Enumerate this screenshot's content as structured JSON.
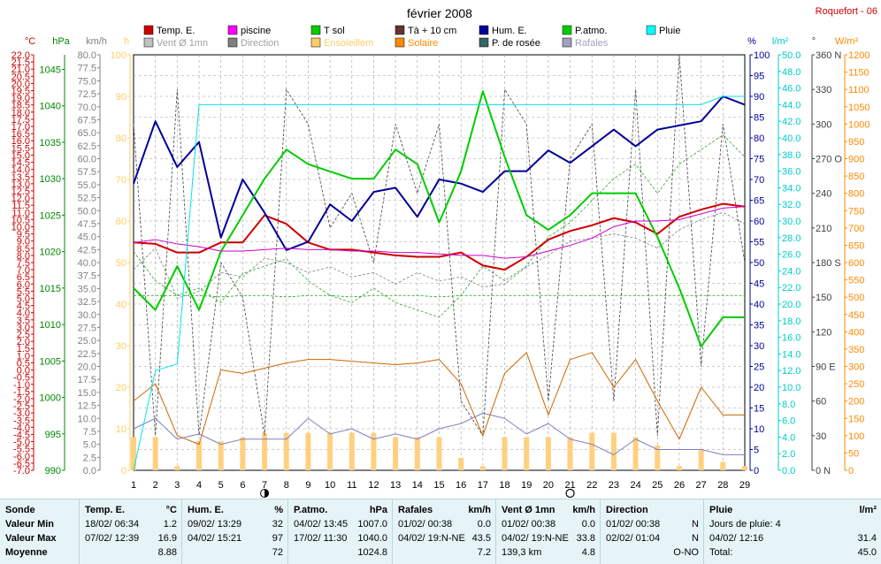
{
  "chart_data": {
    "type": "line",
    "title": "février 2008",
    "location": "Roquefort - 06",
    "x": [
      1,
      2,
      3,
      4,
      5,
      6,
      7,
      8,
      9,
      10,
      11,
      12,
      13,
      14,
      15,
      16,
      17,
      18,
      19,
      20,
      21,
      22,
      23,
      24,
      25,
      26,
      27,
      28,
      29
    ],
    "moon_phases": [
      {
        "day": 7,
        "phase": "last-quarter"
      },
      {
        "day": 21,
        "phase": "full"
      }
    ],
    "legend": [
      {
        "label": "Temp. E.",
        "color": "#cc0000"
      },
      {
        "label": "piscine",
        "color": "#ff00ff"
      },
      {
        "label": "T sol",
        "color": "#00cc00"
      },
      {
        "label": "Tà + 10 cm",
        "color": "#663333"
      },
      {
        "label": "Hum. E.",
        "color": "#000099"
      },
      {
        "label": "P.atmo.",
        "color": "#00cc00"
      },
      {
        "label": "Pluie",
        "color": "#00ffff"
      },
      {
        "label": "Vent Ø 1mn",
        "color": "#c0c0c0"
      },
      {
        "label": "Direction",
        "color": "#808080"
      },
      {
        "label": "Ensoleillem",
        "color": "#ffcc66"
      },
      {
        "label": "Solaire",
        "color": "#ff8800"
      },
      {
        "label": "P. de rosée",
        "color": "#336666"
      },
      {
        "label": "Rafales",
        "color": "#a0a0c0"
      }
    ],
    "axes": [
      {
        "unit": "°C",
        "color": "#cc0000",
        "min": -7,
        "max": 22,
        "step": 0.5,
        "label_step": 1,
        "decimals": 1
      },
      {
        "unit": "hPa",
        "color": "#008800",
        "min": 990,
        "max": 1047,
        "step": 5,
        "label_step": 5,
        "decimals": 0
      },
      {
        "unit": "km/h",
        "color": "#808080",
        "min": 0,
        "max": 80,
        "step": 2.5,
        "label_step": 2.5,
        "decimals": 1
      },
      {
        "unit": "h",
        "color": "#ffcc66",
        "min": 0,
        "max": 100,
        "step": 10,
        "label_step": 10,
        "decimals": 0
      },
      {
        "unit": "%",
        "color": "#000099",
        "min": 0,
        "max": 100,
        "step": 5,
        "label_step": 5,
        "decimals": 0
      },
      {
        "unit": "l/m²",
        "color": "#00cccc",
        "min": 0,
        "max": 50,
        "step": 2,
        "label_step": 2,
        "decimals": 1
      },
      {
        "unit": "°",
        "color": "#404040",
        "min": 0,
        "max": 360,
        "step": 30,
        "label_step": 30,
        "decimals": 0,
        "tick_names": {
          "90": "90 E",
          "180": "180 S",
          "270": "270 O",
          "360": "360 N",
          "0": "0 N"
        }
      },
      {
        "unit": "W/m²",
        "color": "#ff8800",
        "min": 0,
        "max": 1200,
        "step": 50,
        "label_step": 50,
        "decimals": 0
      }
    ],
    "series": [
      {
        "name": "Temp. E.",
        "axis": 0,
        "color": "#cc0000",
        "width": 2,
        "values": [
          8.9,
          8.8,
          8.2,
          8.2,
          8.9,
          8.9,
          10.8,
          10.2,
          8.9,
          8.4,
          8.4,
          8.2,
          8.0,
          7.9,
          7.9,
          8.2,
          7.3,
          7.0,
          7.9,
          9.1,
          9.7,
          10.1,
          10.6,
          10.3,
          9.5,
          10.7,
          11.2,
          11.6,
          11.4
        ]
      },
      {
        "name": "Hum. E.",
        "axis": 4,
        "color": "#000099",
        "width": 2,
        "values": [
          69,
          84,
          73,
          79,
          56,
          70,
          62,
          53,
          55,
          64,
          60,
          67,
          68,
          61,
          70,
          69,
          67,
          72,
          72,
          77,
          74,
          78,
          82,
          78,
          82,
          83,
          84,
          90,
          88
        ]
      },
      {
        "name": "P.atmo.",
        "axis": 1,
        "color": "#00cc00",
        "width": 2,
        "values": [
          1015,
          1012,
          1018,
          1012,
          1020,
          1025,
          1030,
          1034,
          1032,
          1031,
          1030,
          1030,
          1034,
          1032,
          1024,
          1031,
          1042,
          1033,
          1025,
          1023,
          1025,
          1028,
          1028,
          1028,
          1022,
          1015,
          1007,
          1011,
          1011
        ]
      },
      {
        "name": "piscine",
        "axis": 0,
        "color": "#cc00cc",
        "width": 1,
        "values": [
          8.9,
          9.1,
          8.8,
          8.6,
          8.3,
          8.3,
          8.4,
          8.5,
          8.4,
          8.4,
          8.3,
          8.3,
          8.2,
          8.2,
          8.1,
          8.0,
          8.0,
          7.8,
          7.9,
          8.3,
          8.7,
          9.2,
          10.0,
          10.4,
          10.4,
          10.5,
          10.9,
          11.3,
          11.4
        ]
      },
      {
        "name": "Rafales",
        "axis": 2,
        "color": "#8080c0",
        "width": 1,
        "values": [
          8,
          10,
          6,
          7,
          5,
          6,
          6,
          6,
          10,
          7,
          8,
          6,
          7,
          6,
          8,
          9,
          11,
          10,
          7,
          9,
          6,
          5,
          3,
          6,
          4,
          4,
          4,
          3,
          3
        ]
      },
      {
        "name": "Solaire",
        "axis": 7,
        "color": "#cc6600",
        "width": 1,
        "values": [
          200,
          250,
          100,
          75,
          290,
          280,
          295,
          310,
          320,
          320,
          315,
          310,
          305,
          310,
          320,
          250,
          100,
          280,
          340,
          160,
          320,
          340,
          240,
          320,
          200,
          90,
          240,
          160,
          160
        ]
      },
      {
        "name": "Pluie",
        "axis": 5,
        "color": "#00e5e5",
        "width": 1,
        "values": [
          0,
          12,
          12.8,
          44,
          44,
          44,
          44,
          44,
          44,
          44,
          44,
          44,
          44,
          44,
          44,
          44,
          44,
          44,
          44,
          44,
          44,
          44,
          44,
          44,
          44,
          44,
          44,
          45,
          45
        ]
      },
      {
        "name": "Ensoleillem",
        "axis": 3,
        "color": "#ffd080",
        "type": "bar",
        "values": [
          8,
          8,
          1,
          7,
          7,
          8,
          9,
          9,
          9,
          9,
          9,
          9,
          8,
          8,
          8,
          3,
          1,
          8,
          8,
          8,
          8,
          9,
          9,
          8,
          6,
          1,
          5,
          2,
          1
        ]
      }
    ],
    "extra_dashed": [
      {
        "axis": 1,
        "color": "#30a030",
        "values": [
          1020,
          1016,
          1014,
          1015,
          1013,
          1017,
          1018,
          1019,
          1016,
          1014,
          1013,
          1015,
          1013,
          1012,
          1011,
          1014,
          1018,
          1016,
          1018,
          1022,
          1024,
          1027,
          1030,
          1032,
          1028,
          1032,
          1034,
          1036,
          1033
        ]
      },
      {
        "axis": 0,
        "color": "#00aa00",
        "values": [
          5.2,
          5.2,
          5.2,
          5.2,
          5.1,
          5.2,
          5.2,
          5.1,
          5.2,
          5.2,
          5.1,
          5.2,
          5.2,
          5.2,
          5.1,
          5.2,
          5.2,
          5.2,
          5.2,
          5.2,
          5.2,
          5.2,
          5.2,
          5.2,
          5.2,
          5.2,
          5.2,
          5.2,
          5.2
        ]
      },
      {
        "axis": 0,
        "color": "#808080",
        "values": [
          7.0,
          8.5,
          5.0,
          5.5,
          6.8,
          6.5,
          7.8,
          7.5,
          6.8,
          7.2,
          6.5,
          6.8,
          6.0,
          6.8,
          6.2,
          6.5,
          5.8,
          6.0,
          7.2,
          8.0,
          9.0,
          9.2,
          9.5,
          9.2,
          8.5,
          9.8,
          10.5,
          11.0,
          10.2
        ]
      },
      {
        "axis": 6,
        "color": "#404040",
        "values": [
          300,
          30,
          330,
          30,
          180,
          150,
          30,
          330,
          300,
          210,
          240,
          180,
          300,
          240,
          300,
          60,
          30,
          330,
          300,
          60,
          270,
          300,
          60,
          330,
          30,
          360,
          90,
          300,
          180
        ]
      }
    ]
  },
  "footer": {
    "rows": [
      "Sonde",
      "Valeur Min",
      "Valeur Max",
      "Moyenne"
    ],
    "blocks": [
      {
        "title": "Temp. E.",
        "unit": "°C",
        "min_date": "18/02/  06:34",
        "min_val": "1.2",
        "max_date": "07/02/  12:39",
        "max_val": "16.9",
        "avg": "8.88"
      },
      {
        "title": "Hum. E.",
        "unit": "%",
        "min_date": "09/02/  13:29",
        "min_val": "32",
        "max_date": "04/02/  15:21",
        "max_val": "97",
        "avg": "72"
      },
      {
        "title": "P.atmo.",
        "unit": "hPa",
        "min_date": "04/02/  13:45",
        "min_val": "1007.0",
        "max_date": "17/02/  11:30",
        "max_val": "1040.0",
        "avg": "1024.8"
      },
      {
        "title": "Rafales",
        "unit": "km/h",
        "min_date": "01/02/  00:38",
        "min_val": "0.0",
        "max_date": "04/02/  19:N-NE",
        "max_val": "43.5",
        "avg": "7.2"
      },
      {
        "title": "Vent Ø 1mn",
        "unit": "km/h",
        "min_date": "01/02/  00:38",
        "min_val": "0.0",
        "max_date": "04/02/  19:N-NE",
        "max_val": "33.8",
        "avg_prefix": "139,3 km",
        "avg": "4.8"
      },
      {
        "title": "Direction",
        "unit": "",
        "min_date": "01/02/  00:38",
        "min_val": "N",
        "max_date": "02/02/  01:04",
        "max_val": "N",
        "avg": "O-NO"
      },
      {
        "title": "Pluie",
        "unit": "l/m²",
        "min_date": "Jours de pluie: 4",
        "min_val": "",
        "max_date": "04/02/  12:16",
        "max_val": "31.4",
        "avg_prefix": "Total:",
        "avg": "45.0"
      }
    ]
  }
}
